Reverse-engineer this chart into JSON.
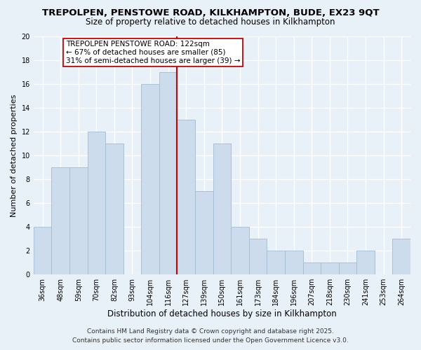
{
  "title": "TREPOLPEN, PENSTOWE ROAD, KILKHAMPTON, BUDE, EX23 9QT",
  "subtitle": "Size of property relative to detached houses in Kilkhampton",
  "xlabel": "Distribution of detached houses by size in Kilkhampton",
  "ylabel": "Number of detached properties",
  "categories": [
    "36sqm",
    "48sqm",
    "59sqm",
    "70sqm",
    "82sqm",
    "93sqm",
    "104sqm",
    "116sqm",
    "127sqm",
    "139sqm",
    "150sqm",
    "161sqm",
    "173sqm",
    "184sqm",
    "196sqm",
    "207sqm",
    "218sqm",
    "230sqm",
    "241sqm",
    "253sqm",
    "264sqm"
  ],
  "values": [
    4,
    9,
    9,
    12,
    11,
    0,
    16,
    17,
    13,
    7,
    11,
    4,
    3,
    2,
    2,
    1,
    1,
    1,
    2,
    0,
    3
  ],
  "bar_color": "#ccdcec",
  "bar_edge_color": "#a0bcd0",
  "vline_x_index": 7,
  "vline_color": "#cc0000",
  "annotation_title": "TREPOLPEN PENSTOWE ROAD: 122sqm",
  "annotation_line1": "← 67% of detached houses are smaller (85)",
  "annotation_line2": "31% of semi-detached houses are larger (39) →",
  "annotation_box_color": "#ffffff",
  "annotation_box_edge": "#cc0000",
  "ylim": [
    0,
    20
  ],
  "yticks": [
    0,
    2,
    4,
    6,
    8,
    10,
    12,
    14,
    16,
    18,
    20
  ],
  "footer1": "Contains HM Land Registry data © Crown copyright and database right 2025.",
  "footer2": "Contains public sector information licensed under the Open Government Licence v3.0.",
  "background_color": "#e8f0f8",
  "grid_color": "#ffffff",
  "title_fontsize": 9.5,
  "subtitle_fontsize": 8.5,
  "tick_fontsize": 7,
  "xlabel_fontsize": 8.5,
  "ylabel_fontsize": 8,
  "footer_fontsize": 6.5,
  "annotation_fontsize": 7.5
}
